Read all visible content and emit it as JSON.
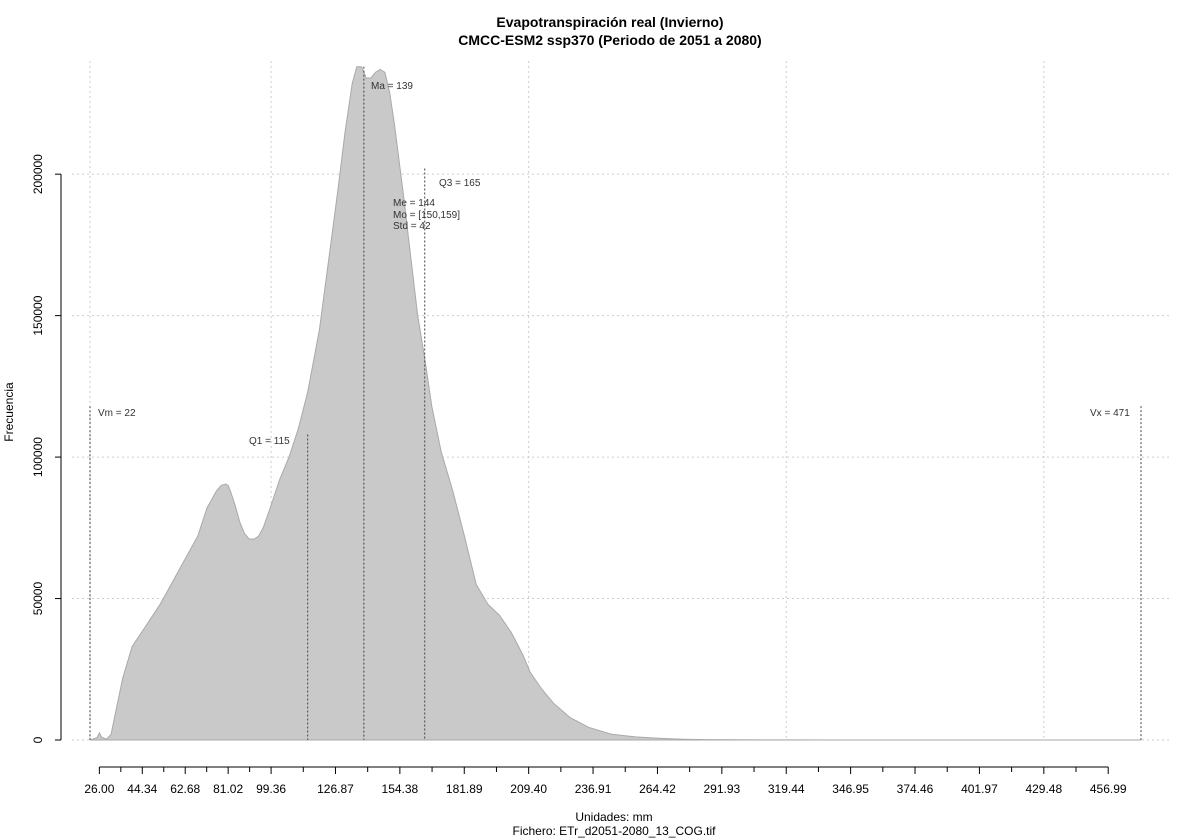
{
  "chart_data": {
    "type": "area",
    "title": "Evapotranspiración real (Invierno)",
    "subtitle": "CMCC-ESM2 ssp370 (Periodo de 2051 a 2080)",
    "xlabel": "Unidades: mm",
    "ylabel": "Frecuencia",
    "footer": "Fichero: ETr_d2051-2080_13_COG.tif",
    "xlim": [
      22,
      471
    ],
    "ylim": [
      0,
      240000
    ],
    "x_ticks": [
      26.0,
      44.34,
      62.68,
      81.02,
      99.36,
      126.87,
      154.38,
      181.89,
      209.4,
      236.91,
      264.42,
      291.93,
      319.44,
      346.95,
      374.46,
      401.97,
      429.48,
      456.99
    ],
    "x_tick_labels": [
      "26.00",
      "44.34",
      "62.68",
      "81.02",
      "99.36",
      "126.87",
      "154.38",
      "181.89",
      "209.40",
      "236.91",
      "264.42",
      "291.93",
      "319.44",
      "346.95",
      "374.46",
      "401.97",
      "429.48",
      "456.99"
    ],
    "y_ticks": [
      0,
      50000,
      100000,
      150000,
      200000
    ],
    "y_tick_labels": [
      "0",
      "50000",
      "100000",
      "150000",
      "200000"
    ],
    "x_grid": [
      22,
      99.36,
      209.4,
      319.44,
      429.48
    ],
    "y_grid": [
      0,
      50000,
      100000,
      150000,
      200000
    ],
    "grid": true,
    "series": [
      {
        "x": [
          22,
          25,
          26,
          27,
          29,
          31,
          33,
          36,
          40,
          44,
          48,
          52,
          56,
          60,
          64,
          68,
          72,
          76,
          78,
          80,
          81,
          82,
          84,
          86,
          88,
          90,
          92,
          94,
          96,
          99,
          103,
          107,
          111,
          115,
          120,
          124,
          128,
          131,
          134,
          136,
          138,
          139,
          140,
          142,
          144,
          146,
          148,
          150,
          152,
          154,
          156,
          158,
          160,
          162,
          165,
          168,
          172,
          177,
          182,
          187,
          192,
          197,
          202,
          207,
          210,
          215,
          220,
          227,
          235,
          245,
          255,
          265,
          275,
          285,
          300,
          320,
          350,
          400,
          450,
          471
        ],
        "y": [
          0,
          800,
          2500,
          1000,
          300,
          2000,
          10000,
          22000,
          33000,
          38000,
          43000,
          48000,
          54000,
          60000,
          66000,
          72000,
          82000,
          88000,
          90000,
          90500,
          90000,
          88000,
          83000,
          77000,
          73000,
          71000,
          71000,
          72000,
          75000,
          82000,
          92000,
          100000,
          110000,
          123000,
          145000,
          170000,
          195000,
          215000,
          232000,
          238000,
          238000,
          236000,
          234000,
          234000,
          236000,
          237000,
          236000,
          229000,
          218000,
          205000,
          192000,
          178000,
          164000,
          150000,
          135000,
          118000,
          102000,
          88000,
          72000,
          55000,
          48000,
          44000,
          38000,
          30000,
          24000,
          18000,
          13000,
          8000,
          4500,
          2000,
          1100,
          600,
          300,
          150,
          60,
          20,
          5,
          0,
          0,
          0
        ]
      }
    ],
    "annotations": {
      "vm": {
        "label": "Vm = 22",
        "x": 22,
        "y": 118000
      },
      "q1": {
        "label": "Q1 = 115",
        "x": 115,
        "y": 108000
      },
      "ma": {
        "label": "Ma = 139",
        "x": 139,
        "y": 238000
      },
      "q3": {
        "label": "Q3 = 165",
        "x": 165,
        "y": 202000
      },
      "vx": {
        "label": "Vx = 471",
        "x": 471,
        "y": 118000
      },
      "stats": [
        "Me = 144",
        "Mo = [150,159]",
        "Std = 42"
      ]
    },
    "colors": {
      "fill": "#c9c9c9",
      "stroke": "#a9a9a9",
      "grid": "#cccccc",
      "annot": "#333333"
    }
  }
}
